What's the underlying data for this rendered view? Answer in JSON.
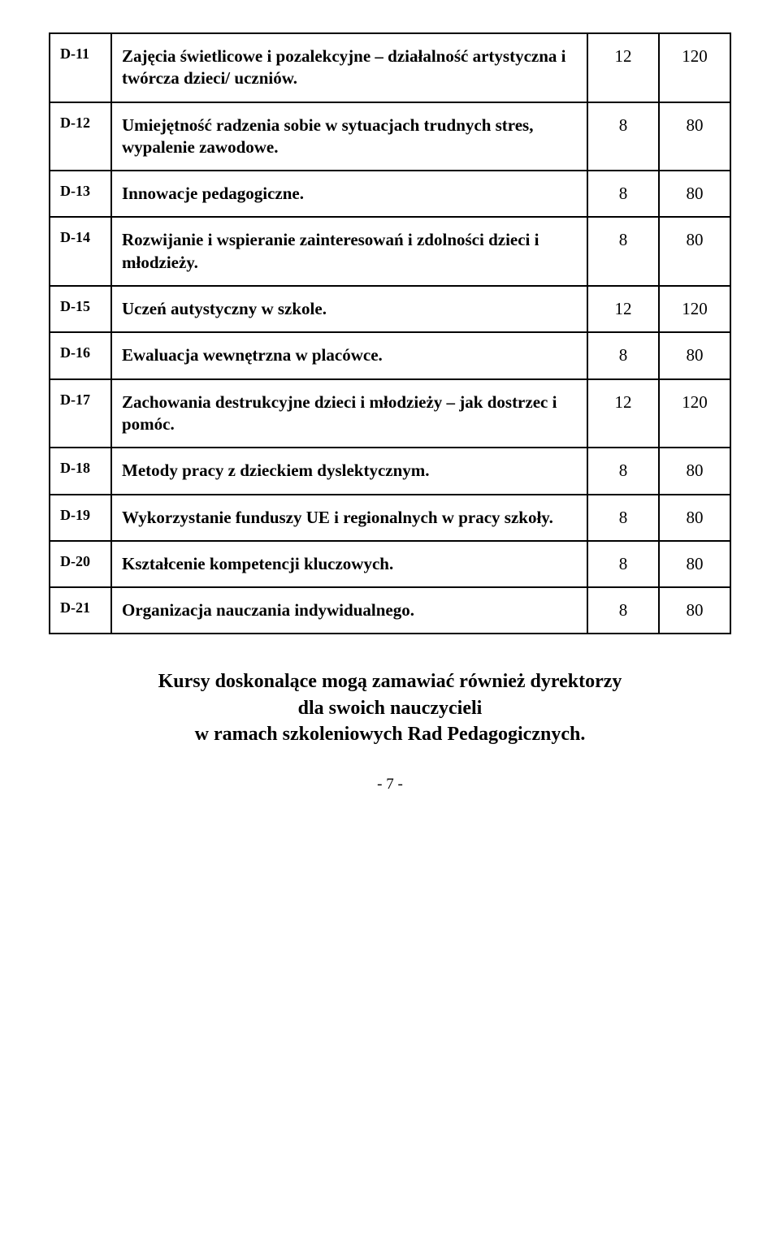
{
  "table": {
    "rows": [
      {
        "code": "D-11",
        "desc": "Zajęcia świetlicowe i pozalekcyjne – działalność artystyczna i twórcza dzieci/ uczniów.",
        "n1": "12",
        "n2": "120"
      },
      {
        "code": "D-12",
        "desc": "Umiejętność radzenia sobie w sytuacjach trudnych stres, wypalenie zawodowe.",
        "n1": "8",
        "n2": "80"
      },
      {
        "code": "D-13",
        "desc": "Innowacje pedagogiczne.",
        "n1": "8",
        "n2": "80"
      },
      {
        "code": "D-14",
        "desc": "Rozwijanie i wspieranie zainteresowań i zdolności dzieci i młodzieży.",
        "n1": "8",
        "n2": "80"
      },
      {
        "code": "D-15",
        "desc": "Uczeń autystyczny w szkole.",
        "n1": "12",
        "n2": "120"
      },
      {
        "code": "D-16",
        "desc": "Ewaluacja wewnętrzna w placówce.",
        "n1": "8",
        "n2": "80"
      },
      {
        "code": "D-17",
        "desc": "Zachowania destrukcyjne dzieci i młodzieży – jak dostrzec i pomóc.",
        "n1": "12",
        "n2": "120"
      },
      {
        "code": "D-18",
        "desc": "Metody pracy z dzieckiem dyslektycznym.",
        "n1": "8",
        "n2": "80"
      },
      {
        "code": "D-19",
        "desc": "Wykorzystanie funduszy UE i regionalnych w pracy szkoły.",
        "n1": "8",
        "n2": "80"
      },
      {
        "code": "D-20",
        "desc": "Kształcenie kompetencji kluczowych.",
        "n1": "8",
        "n2": "80"
      },
      {
        "code": "D-21",
        "desc": "Organizacja nauczania indywidualnego.",
        "n1": "8",
        "n2": "80"
      }
    ]
  },
  "footer": {
    "line1": "Kursy doskonalące mogą zamawiać również dyrektorzy",
    "line2": "dla swoich nauczycieli",
    "line3": "w ramach szkoleniowych Rad Pedagogicznych."
  },
  "page_number": "- 7 -"
}
